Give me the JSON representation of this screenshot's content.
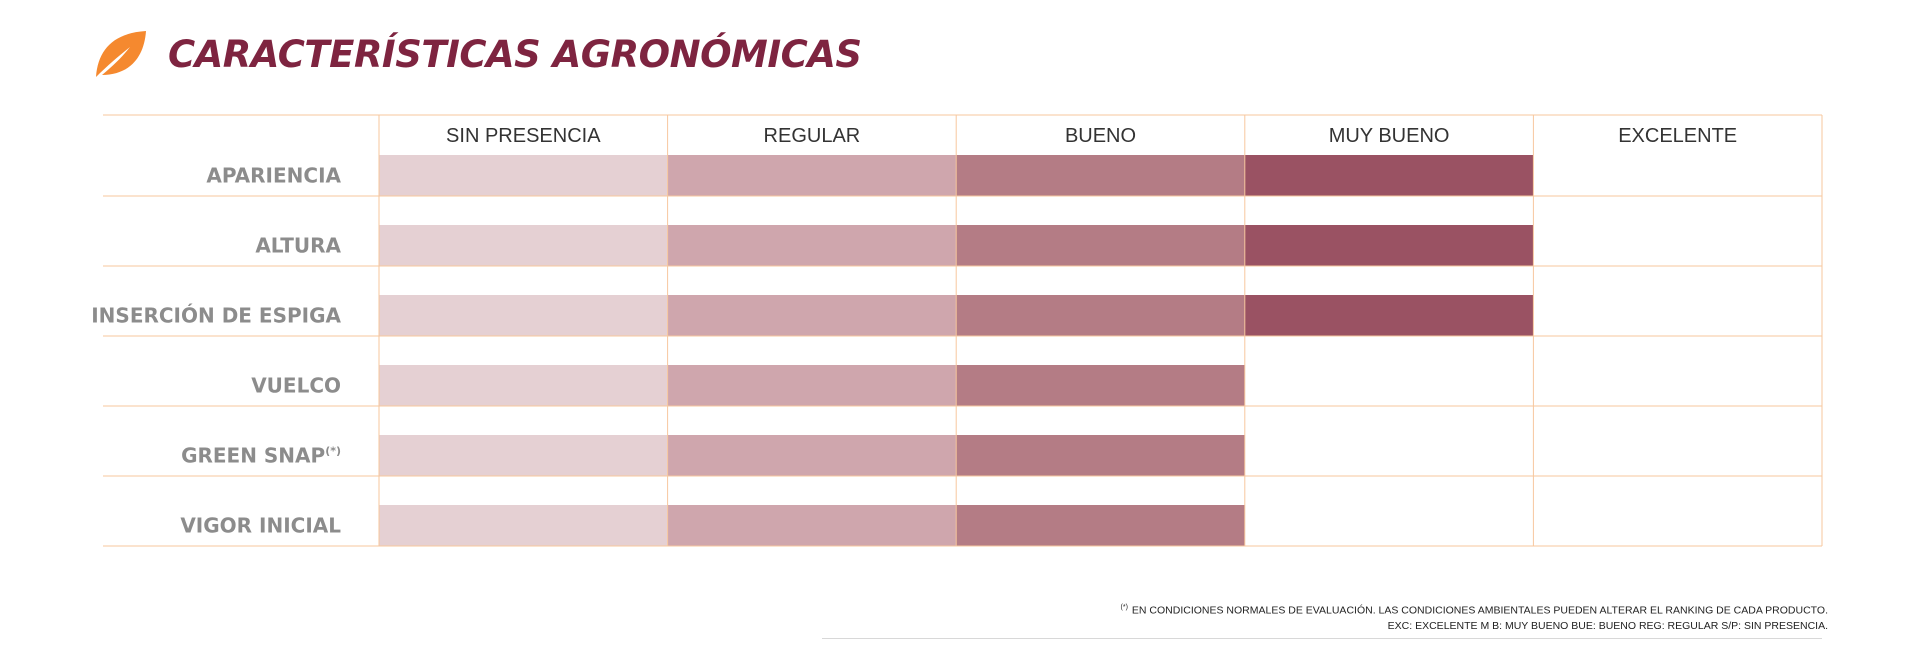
{
  "header": {
    "title": "CARACTERÍSTICAS AGRONÓMICAS",
    "icon": "leaf-icon",
    "icon_color": "#f5892f",
    "title_color": "#7e2440"
  },
  "chart_data": {
    "type": "bar",
    "orientation": "horizontal",
    "levels": [
      "SIN PRESENCIA",
      "REGULAR",
      "BUENO",
      "MUY BUENO",
      "EXCELENTE"
    ],
    "level_colors": [
      "#e5d0d3",
      "#cfa6ad",
      "#b47c85",
      "#9a5263",
      "#7e2440"
    ],
    "grid_color": "#f7c79e",
    "rows": [
      {
        "label": "APARIENCIA",
        "value": 4
      },
      {
        "label": "ALTURA",
        "value": 4
      },
      {
        "label": "INSERCIÓN DE ESPIGA",
        "value": 4
      },
      {
        "label": "VUELCO",
        "value": 3
      },
      {
        "label": "GREEN SNAP",
        "superscript": "(*)",
        "value": 3
      },
      {
        "label": "VIGOR INICIAL",
        "value": 3
      }
    ],
    "xlim": [
      0,
      5
    ]
  },
  "footer": {
    "note_mark": "(*)",
    "note": "EN CONDICIONES NORMALES DE EVALUACIÓN. LAS CONDICIONES AMBIENTALES PUEDEN ALTERAR EL RANKING DE CADA PRODUCTO.",
    "abbreviations": "EXC: EXCELENTE M B: MUY BUENO BUE: BUENO REG: REGULAR S/P: SIN PRESENCIA."
  }
}
